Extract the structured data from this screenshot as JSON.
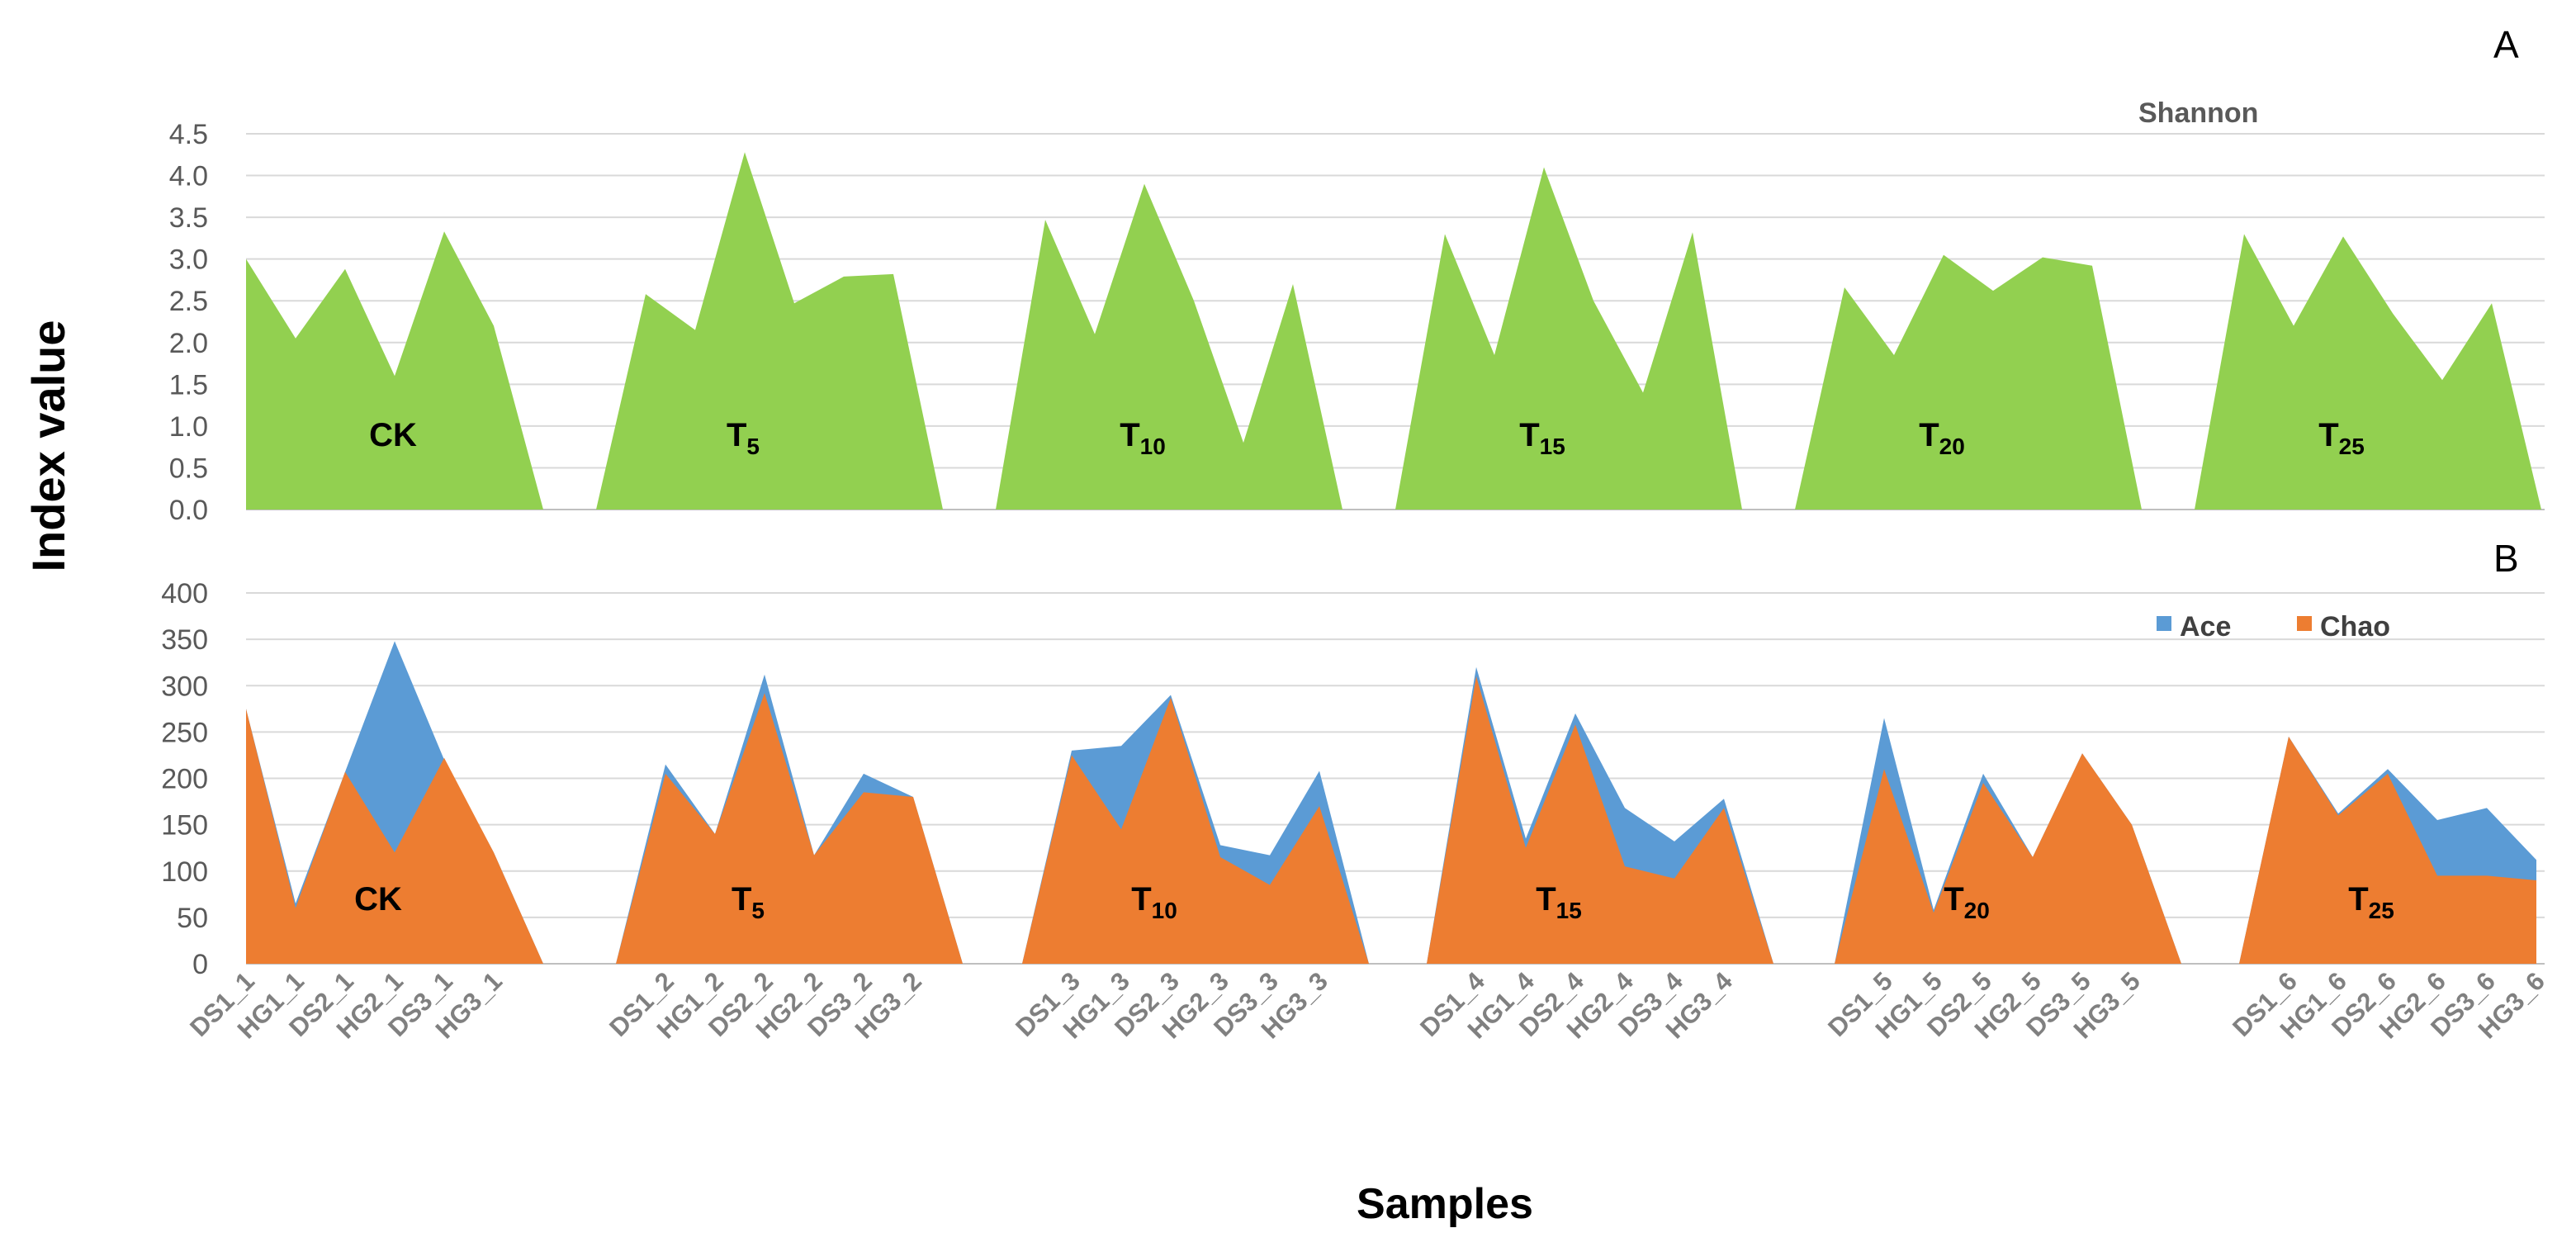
{
  "axis_titles": {
    "y": "Index value",
    "x": "Samples"
  },
  "panel_labels": {
    "a": "A",
    "b": "B"
  },
  "colors": {
    "shannon": "#92d050",
    "ace": "#5b9bd5",
    "chao": "#ed7d31"
  },
  "chart_data": [
    {
      "panel": "A",
      "type": "area",
      "series_label": "Shannon",
      "ylim": [
        0,
        4.5
      ],
      "yticks": [
        "0.0",
        "0.5",
        "1.0",
        "1.5",
        "2.0",
        "2.5",
        "3.0",
        "3.5",
        "4.0",
        "4.5"
      ],
      "groups": [
        {
          "main": "CK",
          "sub": "",
          "values": [
            3.0,
            2.05,
            2.88,
            1.6,
            3.33,
            2.2,
            0.0
          ]
        },
        {
          "main": "T",
          "sub": "5",
          "values": [
            0.0,
            2.58,
            2.15,
            4.28,
            2.47,
            2.79,
            2.82,
            0.0
          ]
        },
        {
          "main": "T",
          "sub": "10",
          "values": [
            0.0,
            3.47,
            2.1,
            3.9,
            2.5,
            0.8,
            2.7,
            0.0
          ]
        },
        {
          "main": "T",
          "sub": "15",
          "values": [
            0.0,
            3.3,
            1.85,
            4.1,
            2.5,
            1.4,
            3.32,
            0.0
          ]
        },
        {
          "main": "T",
          "sub": "20",
          "values": [
            0.0,
            2.66,
            1.85,
            3.05,
            2.62,
            3.02,
            2.92,
            0.0
          ]
        },
        {
          "main": "T",
          "sub": "25",
          "values": [
            0.0,
            3.3,
            2.2,
            3.27,
            2.35,
            1.55,
            2.47,
            0.0
          ]
        }
      ]
    },
    {
      "panel": "B",
      "type": "area",
      "ylim": [
        0,
        400
      ],
      "yticks": [
        "0",
        "50",
        "100",
        "150",
        "200",
        "250",
        "300",
        "350",
        "400"
      ],
      "legend": [
        "Ace",
        "Chao"
      ],
      "series_names": [
        "Ace",
        "Chao"
      ],
      "groups": [
        {
          "main": "CK",
          "sub": "",
          "samples": [
            "DS1_1",
            "HG1_1",
            "DS2_1",
            "HG2_1",
            "DS3_1",
            "HG3_1"
          ],
          "ace": [
            275,
            65,
            207,
            348,
            220,
            120,
            0
          ],
          "chao": [
            275,
            60,
            207,
            120,
            222,
            120,
            0
          ]
        },
        {
          "main": "T",
          "sub": "5",
          "samples": [
            "DS1_2",
            "HG1_2",
            "DS2_2",
            "HG2_2",
            "DS3_2",
            "HG3_2"
          ],
          "ace": [
            0,
            215,
            140,
            312,
            117,
            205,
            180,
            0
          ],
          "chao": [
            0,
            205,
            140,
            292,
            117,
            185,
            180,
            0
          ]
        },
        {
          "main": "T",
          "sub": "10",
          "samples": [
            "DS1_3",
            "HG1_3",
            "DS2_3",
            "HG2_3",
            "DS3_3",
            "HG3_3"
          ],
          "ace": [
            0,
            230,
            235,
            290,
            128,
            117,
            208,
            0
          ],
          "chao": [
            0,
            225,
            145,
            287,
            115,
            85,
            170,
            0
          ]
        },
        {
          "main": "T",
          "sub": "15",
          "samples": [
            "DS1_4",
            "HG1_4",
            "DS2_4",
            "HG2_4",
            "DS3_4",
            "HG3_4"
          ],
          "ace": [
            0,
            320,
            135,
            270,
            168,
            132,
            178,
            0
          ],
          "chao": [
            0,
            310,
            125,
            258,
            105,
            92,
            168,
            0
          ]
        },
        {
          "main": "T",
          "sub": "20",
          "samples": [
            "DS1_5",
            "HG1_5",
            "DS2_5",
            "HG2_5",
            "DS3_5",
            "HG3_5"
          ],
          "ace": [
            0,
            265,
            58,
            205,
            115,
            227,
            150,
            0
          ],
          "chao": [
            0,
            210,
            55,
            195,
            115,
            227,
            150,
            0
          ]
        },
        {
          "main": "T",
          "sub": "25",
          "samples": [
            "DS1_6",
            "HG1_6",
            "DS2_6",
            "HG2_6",
            "DS3_6",
            "HG3_6"
          ],
          "ace": [
            0,
            245,
            162,
            210,
            155,
            168,
            112
          ],
          "chao": [
            0,
            245,
            160,
            205,
            95,
            95,
            90
          ]
        }
      ]
    }
  ]
}
